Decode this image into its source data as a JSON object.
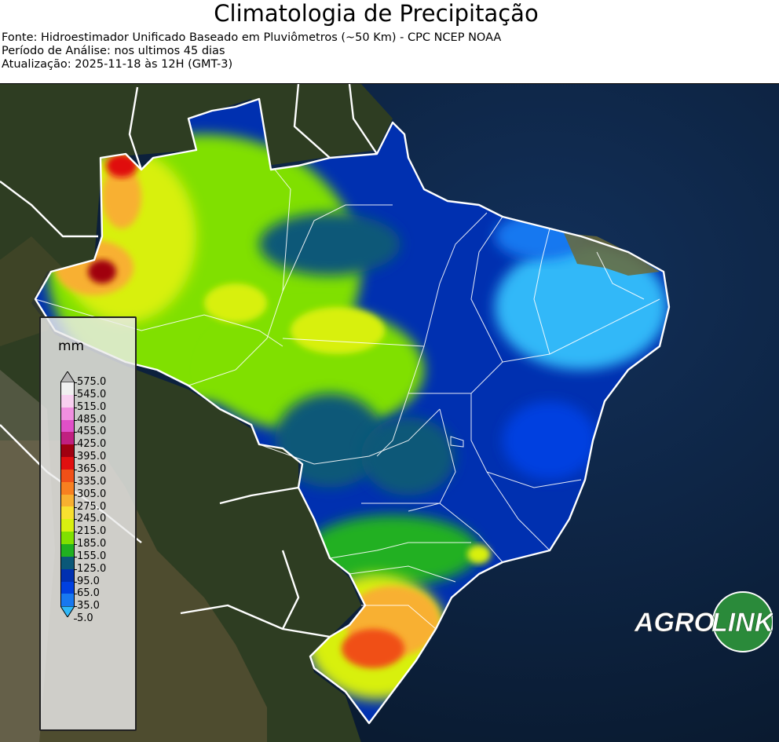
{
  "header": {
    "title": "Climatologia de Precipitação",
    "source": "Fonte: Hidroestimador Unificado Baseado em Pluviômetros (~50 Km) - CPC NCEP NOAA",
    "period": "Período de Análise: nos ultimos 45 dias",
    "updated": "Atualização: 2025-11-18 às 12H (GMT-3)"
  },
  "legend": {
    "unit": "mm",
    "levels": [
      "575.0",
      "545.0",
      "515.0",
      "485.0",
      "455.0",
      "425.0",
      "395.0",
      "365.0",
      "335.0",
      "305.0",
      "275.0",
      "245.0",
      "215.0",
      "185.0",
      "155.0",
      "125.0",
      "95.0",
      "65.0",
      "35.0",
      "5.0"
    ],
    "colors": [
      "#b5b5b5",
      "#f0f0f0",
      "#f8d0f0",
      "#f090e0",
      "#e050c8",
      "#c02080",
      "#a00010",
      "#e01010",
      "#f05018",
      "#f88020",
      "#f8b030",
      "#f8e030",
      "#d8f010",
      "#80e000",
      "#20b020",
      "#0a5878",
      "#0030b0",
      "#0040e0",
      "#1878f0",
      "#30b8f8"
    ]
  },
  "logo": {
    "text_left": "AGRO",
    "text_right": "LINK",
    "color": "#2a8a3a"
  }
}
